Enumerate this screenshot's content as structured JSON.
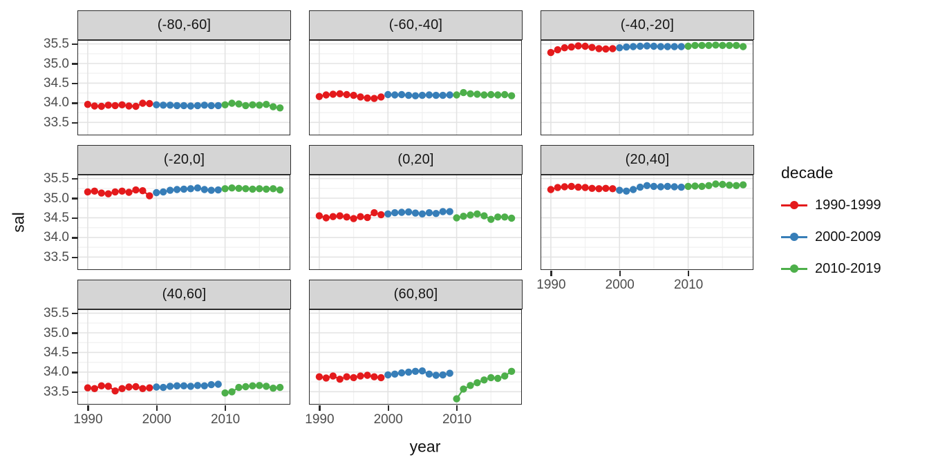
{
  "chart_data": {
    "type": "scatter",
    "title": "",
    "xlabel": "year",
    "ylabel": "sal",
    "grid": true,
    "x_ticks": [
      1990,
      2000,
      2010
    ],
    "x_minor_gridlines": [
      1995,
      2005,
      2015
    ],
    "y_ticks": [
      "35.5",
      "35.0",
      "34.5",
      "34.0",
      "33.5"
    ],
    "y_minor_gridlines": [
      35.25,
      34.75,
      34.25,
      33.75
    ],
    "xlim": [
      1988.6,
      2019.4
    ],
    "ylim": [
      33.19,
      35.58
    ],
    "legend": {
      "title": "decade",
      "position": "right",
      "entries": [
        {
          "label": "1990-1999",
          "color": "#E41A1C",
          "from": 1990,
          "to": 1999
        },
        {
          "label": "2000-2009",
          "color": "#377EB8",
          "from": 2000,
          "to": 2009
        },
        {
          "label": "2010-2019",
          "color": "#4DAF4A",
          "from": 2010,
          "to": 2019
        }
      ]
    },
    "years": [
      1990,
      1991,
      1992,
      1993,
      1994,
      1995,
      1996,
      1997,
      1998,
      1999,
      2000,
      2001,
      2002,
      2003,
      2004,
      2005,
      2006,
      2007,
      2008,
      2009,
      2010,
      2011,
      2012,
      2013,
      2014,
      2015,
      2016,
      2017,
      2018
    ],
    "facets": [
      {
        "label": "(-80,-60]",
        "values": [
          33.96,
          33.92,
          33.91,
          33.94,
          33.93,
          33.95,
          33.92,
          33.91,
          33.99,
          33.98,
          33.95,
          33.94,
          33.94,
          33.93,
          33.93,
          33.92,
          33.93,
          33.94,
          33.93,
          33.93,
          33.95,
          33.99,
          33.97,
          33.93,
          33.95,
          33.94,
          33.96,
          33.9,
          33.87
        ]
      },
      {
        "label": "(-60,-40]",
        "values": [
          34.16,
          34.2,
          34.22,
          34.23,
          34.21,
          34.19,
          34.15,
          34.12,
          34.11,
          34.15,
          34.21,
          34.2,
          34.21,
          34.19,
          34.18,
          34.19,
          34.2,
          34.19,
          34.19,
          34.2,
          34.2,
          34.26,
          34.23,
          34.22,
          34.2,
          34.21,
          34.2,
          34.21,
          34.18
        ]
      },
      {
        "label": "(-40,-20]",
        "values": [
          35.28,
          35.35,
          35.4,
          35.42,
          35.45,
          35.44,
          35.41,
          35.38,
          35.37,
          35.38,
          35.4,
          35.42,
          35.43,
          35.44,
          35.45,
          35.44,
          35.43,
          35.43,
          35.43,
          35.43,
          35.44,
          35.46,
          35.46,
          35.46,
          35.47,
          35.46,
          35.46,
          35.46,
          35.43
        ]
      },
      {
        "label": "(-20,0]",
        "values": [
          35.16,
          35.18,
          35.13,
          35.11,
          35.16,
          35.18,
          35.15,
          35.21,
          35.19,
          35.06,
          35.14,
          35.16,
          35.2,
          35.22,
          35.23,
          35.24,
          35.26,
          35.22,
          35.2,
          35.21,
          35.24,
          35.26,
          35.25,
          35.24,
          35.23,
          35.24,
          35.23,
          35.24,
          35.21
        ]
      },
      {
        "label": "(0,20]",
        "values": [
          34.55,
          34.5,
          34.53,
          34.55,
          34.52,
          34.48,
          34.53,
          34.51,
          34.63,
          34.58,
          34.6,
          34.63,
          34.64,
          34.65,
          34.62,
          34.6,
          34.63,
          34.61,
          34.66,
          34.66,
          34.5,
          34.54,
          34.57,
          34.6,
          34.55,
          34.46,
          34.52,
          34.52,
          34.49
        ]
      },
      {
        "label": "(20,40]",
        "values": [
          35.22,
          35.27,
          35.29,
          35.3,
          35.28,
          35.27,
          35.25,
          35.24,
          35.25,
          35.24,
          35.2,
          35.18,
          35.22,
          35.28,
          35.32,
          35.3,
          35.29,
          35.3,
          35.29,
          35.28,
          35.3,
          35.31,
          35.3,
          35.32,
          35.36,
          35.35,
          35.33,
          35.32,
          35.34
        ]
      },
      {
        "label": "(40,60]",
        "values": [
          33.6,
          33.58,
          33.65,
          33.64,
          33.52,
          33.58,
          33.62,
          33.63,
          33.58,
          33.6,
          33.62,
          33.61,
          33.64,
          33.65,
          33.65,
          33.64,
          33.66,
          33.65,
          33.68,
          33.69,
          33.47,
          33.5,
          33.61,
          33.63,
          33.65,
          33.66,
          33.64,
          33.59,
          33.61
        ]
      },
      {
        "label": "(60,80]",
        "values": [
          33.88,
          33.85,
          33.9,
          33.82,
          33.88,
          33.86,
          33.9,
          33.92,
          33.88,
          33.86,
          33.93,
          33.95,
          33.98,
          34.0,
          34.02,
          34.03,
          33.95,
          33.92,
          33.93,
          33.97,
          33.32,
          33.57,
          33.66,
          33.73,
          33.8,
          33.86,
          33.84,
          33.9,
          34.02
        ]
      }
    ]
  },
  "colors": {
    "strip_fill": "#D5D5D5",
    "panel_border": "#2B2B2B",
    "grid_major": "#E3E3E3",
    "grid_minor": "#F2F2F2",
    "tick_text": "#4D4D4D",
    "background": "#FFFFFF"
  }
}
